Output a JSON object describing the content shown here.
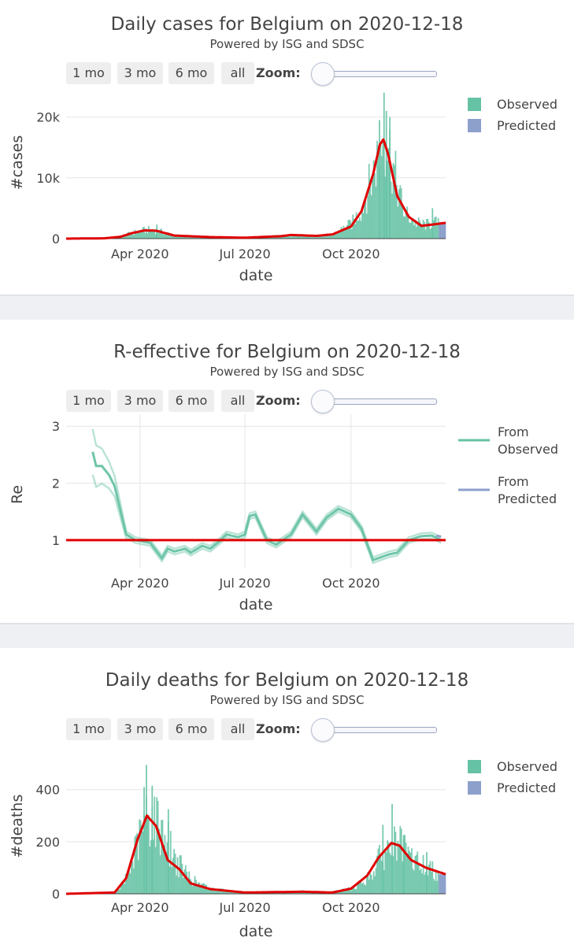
{
  "controls": {
    "buttons": [
      "1 mo",
      "3 mo",
      "6 mo",
      "all"
    ],
    "zoom_label": "Zoom:"
  },
  "colors": {
    "observed": "#66c2a5",
    "predicted": "#8da0cb",
    "fit_line": "#e00000",
    "grid": "#e6e6e6"
  },
  "chart_data": [
    {
      "type": "bar",
      "title": "Daily cases for Belgium on 2020-12-18",
      "subtitle": "Powered by ISG and SDSC",
      "xlabel": "date",
      "ylabel": "#cases",
      "xlim": [
        "2020-01-28",
        "2020-12-22"
      ],
      "ylim": [
        0,
        25000
      ],
      "x_ticks": [
        "2020-04-01",
        "2020-07-01",
        "2020-10-01"
      ],
      "x_tick_labels": [
        "Apr 2020",
        "Jul 2020",
        "Oct 2020"
      ],
      "y_ticks": [
        0,
        10000,
        20000
      ],
      "y_tick_labels": [
        "0",
        "10k",
        "20k"
      ],
      "legend": {
        "position": "top-right",
        "entries": [
          "Observed",
          "Predicted"
        ]
      },
      "observed_knots": [
        [
          "2020-02-01",
          0
        ],
        [
          "2020-03-01",
          10
        ],
        [
          "2020-03-10",
          100
        ],
        [
          "2020-03-20",
          700
        ],
        [
          "2020-04-01",
          1300
        ],
        [
          "2020-04-10",
          1500
        ],
        [
          "2020-04-20",
          1100
        ],
        [
          "2020-05-01",
          500
        ],
        [
          "2020-06-01",
          150
        ],
        [
          "2020-07-01",
          100
        ],
        [
          "2020-08-01",
          500
        ],
        [
          "2020-08-15",
          550
        ],
        [
          "2020-09-01",
          400
        ],
        [
          "2020-09-15",
          700
        ],
        [
          "2020-10-01",
          2500
        ],
        [
          "2020-10-10",
          5000
        ],
        [
          "2020-10-20",
          11000
        ],
        [
          "2020-10-28",
          17000
        ],
        [
          "2020-11-01",
          16000
        ],
        [
          "2020-11-08",
          10000
        ],
        [
          "2020-11-15",
          4500
        ],
        [
          "2020-11-25",
          2600
        ],
        [
          "2020-12-05",
          2300
        ],
        [
          "2020-12-18",
          2800
        ]
      ],
      "observed_spikes": [
        [
          "2020-10-29",
          24000
        ],
        [
          "2020-10-31",
          21000
        ],
        [
          "2020-10-25",
          19500
        ],
        [
          "2020-11-03",
          20000
        ],
        [
          "2020-12-10",
          5000
        ],
        [
          "2020-04-15",
          2300
        ]
      ],
      "fit_line": [
        [
          "2020-01-28",
          0
        ],
        [
          "2020-03-01",
          50
        ],
        [
          "2020-03-15",
          300
        ],
        [
          "2020-03-25",
          900
        ],
        [
          "2020-04-05",
          1350
        ],
        [
          "2020-04-15",
          1300
        ],
        [
          "2020-05-01",
          500
        ],
        [
          "2020-06-01",
          250
        ],
        [
          "2020-07-01",
          150
        ],
        [
          "2020-08-01",
          400
        ],
        [
          "2020-08-10",
          600
        ],
        [
          "2020-09-01",
          450
        ],
        [
          "2020-09-15",
          700
        ],
        [
          "2020-10-01",
          2000
        ],
        [
          "2020-10-10",
          4500
        ],
        [
          "2020-10-20",
          10500
        ],
        [
          "2020-10-26",
          15500
        ],
        [
          "2020-10-29",
          16300
        ],
        [
          "2020-11-02",
          14000
        ],
        [
          "2020-11-10",
          7000
        ],
        [
          "2020-11-20",
          3600
        ],
        [
          "2020-12-01",
          2100
        ],
        [
          "2020-12-10",
          2300
        ],
        [
          "2020-12-22",
          2600
        ]
      ],
      "predicted_range": [
        "2020-12-16",
        "2020-12-22"
      ],
      "predicted_value": 2700
    },
    {
      "type": "line",
      "title": "R-effective for Belgium on 2020-12-18",
      "subtitle": "Powered by ISG and SDSC",
      "xlabel": "date",
      "ylabel": "Re",
      "xlim": [
        "2020-01-28",
        "2020-12-22"
      ],
      "ylim": [
        0.5,
        3.1
      ],
      "x_ticks": [
        "2020-04-01",
        "2020-07-01",
        "2020-10-01"
      ],
      "x_tick_labels": [
        "Apr 2020",
        "Jul 2020",
        "Oct 2020"
      ],
      "y_ticks": [
        1,
        2,
        3
      ],
      "y_tick_labels": [
        "1",
        "2",
        "3"
      ],
      "reference_line": 1,
      "legend": {
        "position": "top-right",
        "entries": [
          "From Observed",
          "From Predicted"
        ]
      },
      "series": [
        {
          "name": "From Observed",
          "x": [
            "2020-02-20",
            "2020-02-23",
            "2020-02-28",
            "2020-03-05",
            "2020-03-10",
            "2020-03-20",
            "2020-03-28",
            "2020-04-10",
            "2020-04-20",
            "2020-04-25",
            "2020-05-01",
            "2020-05-10",
            "2020-05-15",
            "2020-05-25",
            "2020-06-01",
            "2020-06-10",
            "2020-06-15",
            "2020-06-25",
            "2020-07-01",
            "2020-07-05",
            "2020-07-10",
            "2020-07-20",
            "2020-07-28",
            "2020-08-10",
            "2020-08-20",
            "2020-09-01",
            "2020-09-10",
            "2020-09-20",
            "2020-10-01",
            "2020-10-10",
            "2020-10-20",
            "2020-10-27",
            "2020-11-03",
            "2020-11-10",
            "2020-11-20",
            "2020-12-01",
            "2020-12-10",
            "2020-12-18"
          ],
          "y": [
            2.55,
            2.3,
            2.3,
            2.15,
            1.95,
            1.1,
            1.0,
            0.95,
            0.68,
            0.85,
            0.8,
            0.85,
            0.78,
            0.9,
            0.85,
            1.0,
            1.1,
            1.05,
            1.1,
            1.42,
            1.45,
            1.0,
            0.92,
            1.1,
            1.45,
            1.15,
            1.4,
            1.55,
            1.45,
            1.2,
            0.65,
            0.7,
            0.75,
            0.78,
            1.0,
            1.07,
            1.08,
            1.0
          ]
        },
        {
          "name": "From Predicted",
          "x": [
            "2020-12-14",
            "2020-12-18"
          ],
          "y": [
            1.08,
            1.06
          ]
        }
      ],
      "uncertainty_band": {
        "upper_offset": 0.05,
        "lower_offset": 0.05,
        "upper_start": 2.95,
        "lower_start": 2.15
      }
    },
    {
      "type": "bar",
      "title": "Daily deaths for Belgium on 2020-12-18",
      "subtitle": "Powered by ISG and SDSC",
      "xlabel": "date",
      "ylabel": "#deaths",
      "xlim": [
        "2020-01-28",
        "2020-12-22"
      ],
      "ylim": [
        0,
        520
      ],
      "x_ticks": [
        "2020-04-01",
        "2020-07-01",
        "2020-10-01"
      ],
      "x_tick_labels": [
        "Apr 2020",
        "Jul 2020",
        "Oct 2020"
      ],
      "y_ticks": [
        0,
        200,
        400
      ],
      "y_tick_labels": [
        "0",
        "200",
        "400"
      ],
      "legend": {
        "position": "top-right",
        "entries": [
          "Observed",
          "Predicted"
        ]
      },
      "observed_knots": [
        [
          "2020-02-01",
          0
        ],
        [
          "2020-03-10",
          2
        ],
        [
          "2020-03-20",
          60
        ],
        [
          "2020-03-30",
          200
        ],
        [
          "2020-04-07",
          300
        ],
        [
          "2020-04-12",
          290
        ],
        [
          "2020-04-20",
          250
        ],
        [
          "2020-05-01",
          130
        ],
        [
          "2020-05-10",
          80
        ],
        [
          "2020-05-20",
          40
        ],
        [
          "2020-06-01",
          20
        ],
        [
          "2020-07-01",
          5
        ],
        [
          "2020-08-10",
          8
        ],
        [
          "2020-08-20",
          10
        ],
        [
          "2020-09-10",
          5
        ],
        [
          "2020-10-01",
          20
        ],
        [
          "2020-10-15",
          60
        ],
        [
          "2020-10-25",
          130
        ],
        [
          "2020-11-05",
          185
        ],
        [
          "2020-11-10",
          190
        ],
        [
          "2020-11-20",
          140
        ],
        [
          "2020-12-01",
          110
        ],
        [
          "2020-12-10",
          90
        ],
        [
          "2020-12-18",
          80
        ]
      ],
      "observed_spikes": [
        [
          "2020-04-06",
          495
        ],
        [
          "2020-04-04",
          410
        ],
        [
          "2020-04-11",
          415
        ],
        [
          "2020-04-25",
          325
        ],
        [
          "2020-11-05",
          345
        ],
        [
          "2020-10-28",
          265
        ],
        [
          "2020-11-15",
          225
        ],
        [
          "2020-12-05",
          160
        ]
      ],
      "fit_line": [
        [
          "2020-01-28",
          0
        ],
        [
          "2020-03-10",
          5
        ],
        [
          "2020-03-20",
          60
        ],
        [
          "2020-03-30",
          210
        ],
        [
          "2020-04-07",
          300
        ],
        [
          "2020-04-15",
          260
        ],
        [
          "2020-04-25",
          130
        ],
        [
          "2020-05-05",
          95
        ],
        [
          "2020-05-15",
          40
        ],
        [
          "2020-06-01",
          18
        ],
        [
          "2020-07-01",
          5
        ],
        [
          "2020-08-20",
          8
        ],
        [
          "2020-09-15",
          5
        ],
        [
          "2020-10-01",
          20
        ],
        [
          "2020-10-15",
          70
        ],
        [
          "2020-10-25",
          140
        ],
        [
          "2020-11-05",
          195
        ],
        [
          "2020-11-12",
          185
        ],
        [
          "2020-11-22",
          130
        ],
        [
          "2020-12-05",
          100
        ],
        [
          "2020-12-22",
          75
        ]
      ],
      "predicted_range": [
        "2020-12-16",
        "2020-12-22"
      ],
      "predicted_value": 75
    }
  ]
}
